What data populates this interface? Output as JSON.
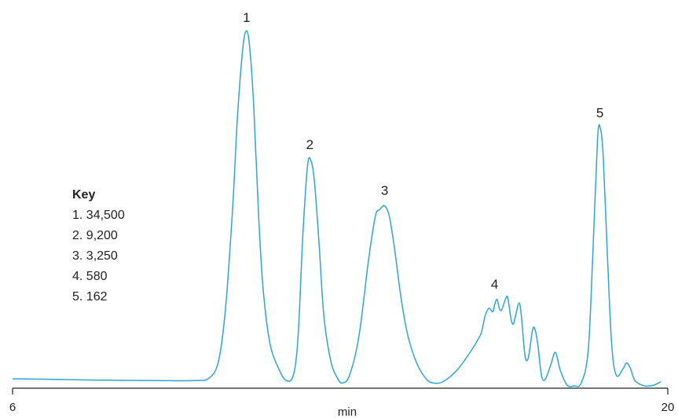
{
  "chart_data": {
    "type": "line",
    "xlabel": "min",
    "xlim": [
      6,
      20
    ],
    "x_ticks": [
      "6",
      "20"
    ],
    "color": "#2aa7d8",
    "peaks": [
      {
        "label": "1",
        "rt": 11.0
      },
      {
        "label": "2",
        "rt": 12.35
      },
      {
        "label": "3",
        "rt": 13.95
      },
      {
        "label": "4",
        "rt": 16.3
      },
      {
        "label": "5",
        "rt": 18.55
      }
    ],
    "series": [
      {
        "values": [
          [
            6.0,
            0.02
          ],
          [
            7.0,
            0.018
          ],
          [
            8.0,
            0.016
          ],
          [
            9.0,
            0.015
          ],
          [
            9.9,
            0.015
          ],
          [
            10.2,
            0.022
          ],
          [
            10.4,
            0.07
          ],
          [
            10.55,
            0.22
          ],
          [
            10.7,
            0.5
          ],
          [
            10.8,
            0.75
          ],
          [
            10.9,
            0.93
          ],
          [
            10.97,
            1.0
          ],
          [
            11.05,
            0.98
          ],
          [
            11.15,
            0.8
          ],
          [
            11.25,
            0.5
          ],
          [
            11.35,
            0.28
          ],
          [
            11.5,
            0.12
          ],
          [
            11.7,
            0.045
          ],
          [
            11.85,
            0.015
          ],
          [
            12.0,
            0.03
          ],
          [
            12.1,
            0.14
          ],
          [
            12.2,
            0.42
          ],
          [
            12.3,
            0.62
          ],
          [
            12.37,
            0.64
          ],
          [
            12.45,
            0.58
          ],
          [
            12.55,
            0.4
          ],
          [
            12.65,
            0.2
          ],
          [
            12.8,
            0.07
          ],
          [
            12.95,
            0.02
          ],
          [
            13.05,
            0.008
          ],
          [
            13.2,
            0.03
          ],
          [
            13.4,
            0.14
          ],
          [
            13.6,
            0.35
          ],
          [
            13.75,
            0.48
          ],
          [
            13.85,
            0.5
          ],
          [
            13.95,
            0.51
          ],
          [
            14.05,
            0.48
          ],
          [
            14.15,
            0.4
          ],
          [
            14.3,
            0.25
          ],
          [
            14.45,
            0.14
          ],
          [
            14.65,
            0.06
          ],
          [
            14.85,
            0.018
          ],
          [
            15.0,
            0.008
          ],
          [
            15.2,
            0.012
          ],
          [
            15.5,
            0.045
          ],
          [
            15.8,
            0.1
          ],
          [
            16.0,
            0.145
          ],
          [
            16.05,
            0.17
          ],
          [
            16.1,
            0.2
          ],
          [
            16.18,
            0.22
          ],
          [
            16.26,
            0.21
          ],
          [
            16.3,
            0.23
          ],
          [
            16.35,
            0.245
          ],
          [
            16.4,
            0.22
          ],
          [
            16.45,
            0.215
          ],
          [
            16.53,
            0.245
          ],
          [
            16.58,
            0.25
          ],
          [
            16.65,
            0.19
          ],
          [
            16.7,
            0.175
          ],
          [
            16.75,
            0.2
          ],
          [
            16.82,
            0.235
          ],
          [
            16.87,
            0.2
          ],
          [
            16.95,
            0.085
          ],
          [
            17.02,
            0.08
          ],
          [
            17.1,
            0.15
          ],
          [
            17.15,
            0.165
          ],
          [
            17.22,
            0.12
          ],
          [
            17.3,
            0.03
          ],
          [
            17.38,
            0.018
          ],
          [
            17.5,
            0.06
          ],
          [
            17.6,
            0.095
          ],
          [
            17.7,
            0.045
          ],
          [
            17.85,
            0.002
          ],
          [
            18.0,
            0.0
          ],
          [
            18.15,
            0.008
          ],
          [
            18.3,
            0.1
          ],
          [
            18.4,
            0.38
          ],
          [
            18.5,
            0.7
          ],
          [
            18.56,
            0.73
          ],
          [
            18.62,
            0.65
          ],
          [
            18.7,
            0.4
          ],
          [
            18.8,
            0.12
          ],
          [
            18.9,
            0.03
          ],
          [
            19.05,
            0.05
          ],
          [
            19.12,
            0.065
          ],
          [
            19.2,
            0.05
          ],
          [
            19.3,
            0.015
          ],
          [
            19.5,
            0.0
          ],
          [
            19.7,
            0.002
          ],
          [
            19.85,
            0.012
          ]
        ]
      }
    ]
  },
  "key": {
    "title": "Key",
    "items": [
      "1. 34,500",
      "2. 9,200",
      "3. 3,250",
      "4. 580",
      "5. 162"
    ]
  }
}
